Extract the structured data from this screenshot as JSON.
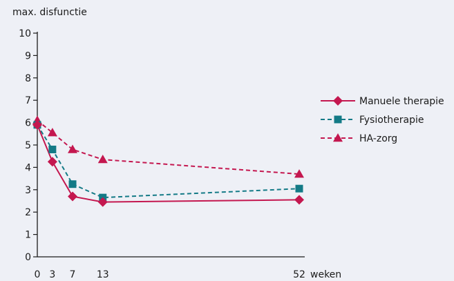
{
  "chart_data": {
    "type": "line",
    "ylabel": "max. disfunctie",
    "xunit": "weken",
    "x": [
      0,
      3,
      7,
      13,
      52
    ],
    "xticks": [
      "0",
      "3",
      "7",
      "13",
      "52"
    ],
    "yticks": [
      "0",
      "1",
      "2",
      "3",
      "4",
      "5",
      "6",
      "7",
      "8",
      "9",
      "10"
    ],
    "ylim": [
      0,
      10
    ],
    "xlim": [
      0,
      52
    ],
    "grid": false,
    "legend_position": "right",
    "series": [
      {
        "name": "Manuele therapie",
        "color": "#c4174f",
        "dash": "solid",
        "marker": "diamond",
        "values": [
          5.9,
          4.25,
          2.7,
          2.45,
          2.55
        ]
      },
      {
        "name": "Fysiotherapie",
        "color": "#137a86",
        "dash": "dashed",
        "marker": "square",
        "values": [
          5.9,
          4.8,
          3.25,
          2.65,
          3.05
        ]
      },
      {
        "name": "HA-zorg",
        "color": "#c4174f",
        "dash": "dashed",
        "marker": "triangle",
        "values": [
          6.1,
          5.55,
          4.8,
          4.35,
          3.7
        ]
      }
    ]
  }
}
